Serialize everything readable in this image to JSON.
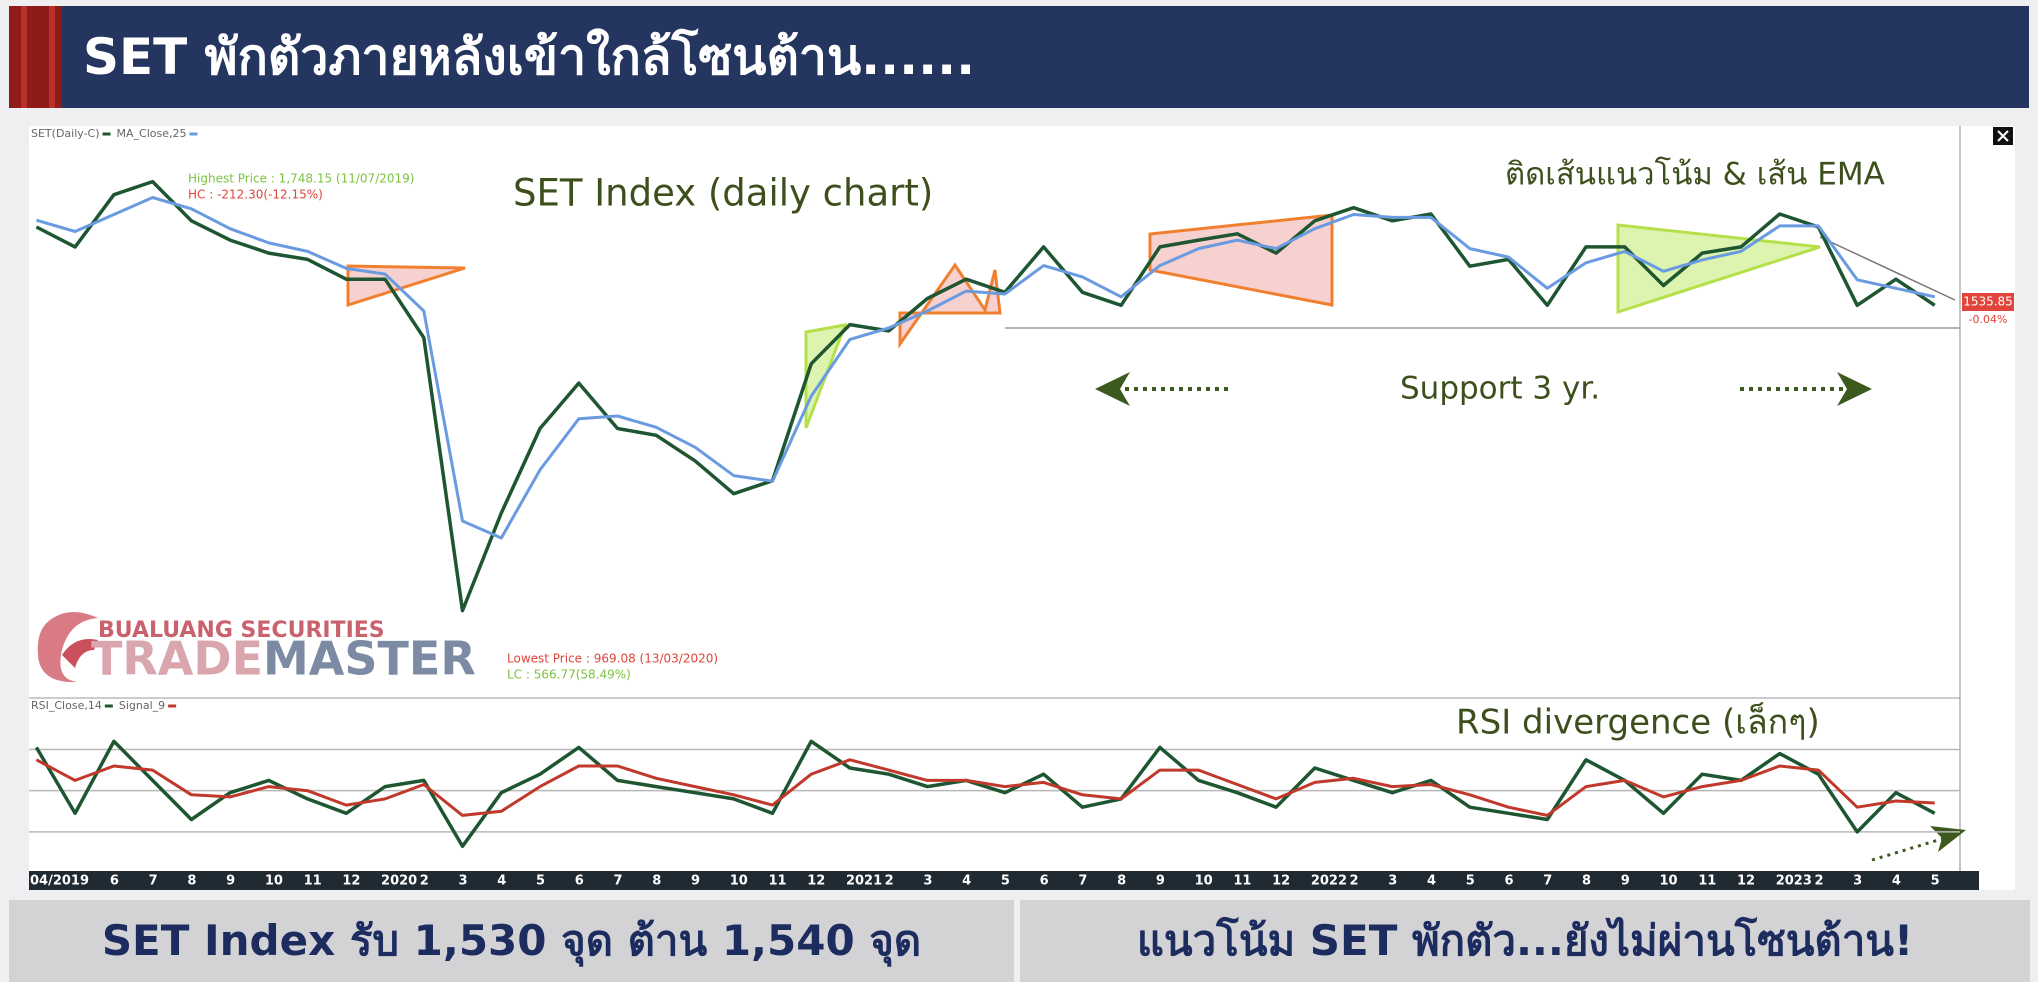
{
  "header": {
    "title": "SET พักตัวภายหลังเข้าใกล้โซนต้าน......"
  },
  "logo": {
    "company": "BUALUANG SECURITIES",
    "brand_a": "TRADE",
    "brand_b": "MASTER"
  },
  "chart_data": [
    {
      "type": "line",
      "title": "SET Index (daily chart)",
      "categories": [
        "04/2019",
        null,
        "6",
        "7",
        "8",
        "9",
        "10",
        "11",
        "12",
        "2020",
        "2",
        "3",
        "4",
        "5",
        "6",
        "7",
        "8",
        "9",
        "10",
        "11",
        "12",
        "2021",
        "2",
        "3",
        "4",
        "5",
        "6",
        "7",
        "8",
        "9",
        "10",
        "11",
        "12",
        "2022",
        "2",
        "3",
        "4",
        "5",
        "6",
        "7",
        "8",
        "9",
        "10",
        "11",
        "12",
        "2023",
        "2",
        "3",
        "4",
        "5"
      ],
      "series": [
        {
          "name": "SET(Daily-C)",
          "color": "#1e5631",
          "values": [
            1668,
            1633,
            1725,
            1748,
            1679,
            1645,
            1622,
            1611,
            1576,
            1576,
            1473,
            992,
            1164,
            1313,
            1393,
            1313,
            1301,
            1256,
            1198,
            1221,
            1427,
            1496,
            1485,
            1542,
            1576,
            1553,
            1633,
            1553,
            1530,
            1633,
            1645,
            1656,
            1622,
            1679,
            1702,
            1679,
            1691,
            1599,
            1611,
            1530,
            1633,
            1633,
            1565,
            1622,
            1633,
            1691,
            1668,
            1530,
            1576,
            1530
          ]
        },
        {
          "name": "MA_Close,25",
          "color": "#6a9be0",
          "values": [
            1680,
            1660,
            1690,
            1720,
            1700,
            1665,
            1640,
            1625,
            1595,
            1585,
            1520,
            1150,
            1120,
            1240,
            1330,
            1335,
            1315,
            1280,
            1230,
            1220,
            1370,
            1470,
            1490,
            1520,
            1555,
            1550,
            1600,
            1580,
            1545,
            1600,
            1630,
            1645,
            1630,
            1665,
            1690,
            1685,
            1685,
            1630,
            1615,
            1560,
            1605,
            1625,
            1590,
            1610,
            1625,
            1670,
            1670,
            1575,
            1560,
            1545
          ]
        }
      ],
      "ylim": [
        838,
        1846
      ],
      "support": 1490,
      "last_price": 1535.85,
      "last_change": {
        "value": -0.04,
        "label": "-0.04%"
      },
      "annotations": [
        "ติดเส้นแนวโน้ม & เส้น EMA",
        "Support 3 yr.",
        "Highest Price : 1,748.15 (11/07/2019)",
        "HC : -212.30(-12.15%)",
        "Lowest Price : 969.08 (13/03/2020)",
        "LC : 566.77(58.49%)"
      ]
    },
    {
      "type": "line",
      "title": "RSI divergence (เล็กๆ)",
      "series": [
        {
          "name": "RSI_Close,14",
          "color": "#1e5631",
          "values": [
            71,
            39,
            74,
            55,
            36,
            49,
            55,
            46,
            39,
            52,
            55,
            23,
            49,
            58,
            71,
            55,
            52,
            49,
            46,
            39,
            74,
            61,
            58,
            52,
            55,
            49,
            58,
            42,
            46,
            71,
            55,
            49,
            42,
            61,
            55,
            49,
            55,
            42,
            39,
            36,
            65,
            55,
            39,
            58,
            55,
            68,
            58,
            30,
            49,
            39
          ]
        },
        {
          "name": "Signal_9",
          "color": "#c0392b",
          "values": [
            65,
            55,
            62,
            60,
            48,
            47,
            52,
            50,
            43,
            46,
            53,
            38,
            40,
            52,
            62,
            62,
            56,
            52,
            48,
            43,
            58,
            65,
            60,
            55,
            55,
            52,
            54,
            48,
            46,
            60,
            60,
            53,
            46,
            54,
            56,
            52,
            53,
            48,
            42,
            38,
            52,
            55,
            47,
            52,
            55,
            62,
            60,
            42,
            45,
            44
          ]
        }
      ],
      "ylim": [
        11,
        95
      ],
      "reference_lines": [
        70,
        50,
        30
      ]
    }
  ],
  "footer": {
    "left": "SET Index รับ 1,530 จุด ต้าน 1,540 จุด",
    "right": "แนวโน้ม SET พักตัว...ยังไม่ผ่านโซนต้าน!"
  }
}
